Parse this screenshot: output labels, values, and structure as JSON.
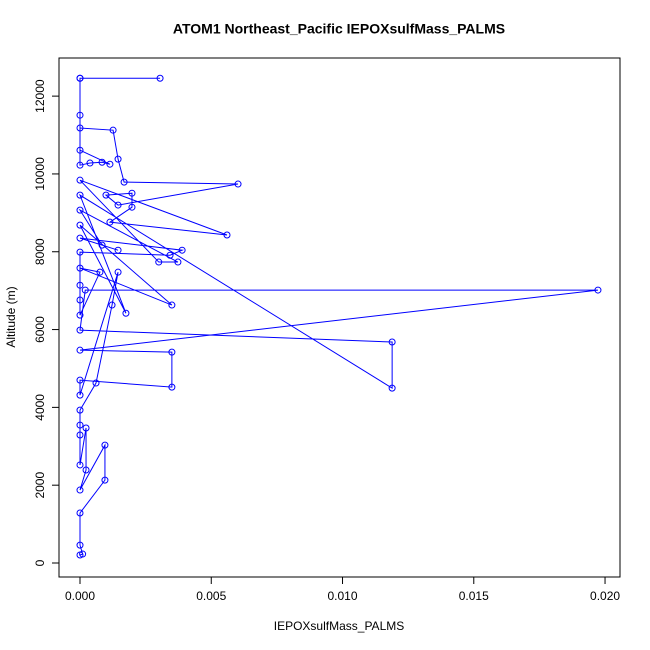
{
  "chart_data": {
    "type": "line",
    "title": "ATOM1 Northeast_Pacific IEPOXsulfMass_PALMS",
    "xlabel": "IEPOXsulfMass_PALMS",
    "ylabel": "Altitude (m)",
    "xlim": [
      -0.0008,
      0.02057
    ],
    "ylim": [
      -360,
      12980
    ],
    "xticks": [
      {
        "value": 0,
        "label": "0.000"
      },
      {
        "value": 0.005,
        "label": "0.005"
      },
      {
        "value": 0.01,
        "label": "0.010"
      },
      {
        "value": 0.015,
        "label": "0.015"
      },
      {
        "value": 0.02,
        "label": "0.020"
      }
    ],
    "yticks": [
      0,
      2000,
      4000,
      6000,
      8000,
      10000,
      12000
    ],
    "series": [
      {
        "color": "#0000ff",
        "x": [
          0,
          0.0001,
          0,
          0,
          0.00095,
          0.00095,
          0,
          0.00023,
          0.00023,
          0,
          0,
          0,
          0,
          0.00061,
          0.00122,
          0.00145,
          0,
          0,
          0.0035,
          0.0035,
          0,
          0.01973,
          0.0002,
          0,
          0.01189,
          0.01189,
          0,
          0.00175,
          0,
          0.0035,
          0,
          0.00076,
          0,
          0,
          0,
          0,
          0.00343,
          0.00389,
          0,
          0.00145,
          0.00084,
          0,
          0.00373,
          0.003,
          0,
          0.0056,
          0.00114,
          0.00198,
          0.00198,
          0.00099,
          0.00145,
          0.00602,
          0.00168,
          0.00145,
          0.00126,
          0,
          0,
          0.00038,
          0.00084,
          0.00114,
          0,
          0,
          0,
          0.00305,
          0
        ],
        "values": [
          205,
          230,
          460,
          1285,
          2130,
          3030,
          1875,
          2390,
          3470,
          2520,
          3290,
          3545,
          3930,
          4625,
          6630,
          7475,
          4315,
          4700,
          4520,
          5420,
          5470,
          7015,
          7015,
          5985,
          5680,
          4495,
          9455,
          6420,
          8685,
          6630,
          7580,
          7475,
          6370,
          6760,
          7140,
          7990,
          7910,
          8040,
          8350,
          8040,
          8170,
          9070,
          7735,
          7735,
          9840,
          8430,
          8760,
          9145,
          9505,
          9455,
          9200,
          9740,
          9790,
          10380,
          11125,
          11180,
          10225,
          10280,
          10300,
          10250,
          10610,
          11510,
          12460,
          12460,
          12460
        ]
      }
    ]
  }
}
